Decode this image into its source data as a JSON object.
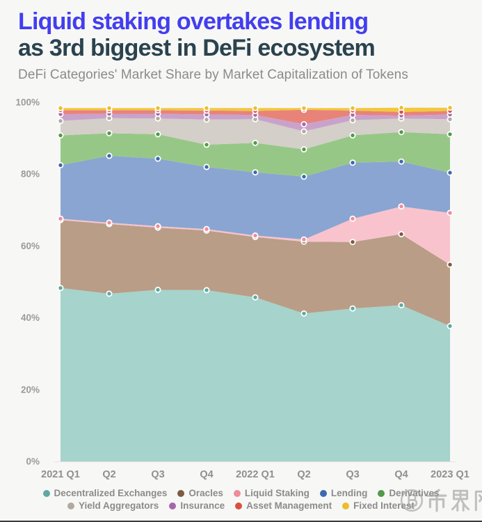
{
  "header": {
    "title_line1": "Liquid staking overtakes lending",
    "title_line2": "as 3rd biggest in DeFi ecosystem",
    "subtitle": "DeFi Categories' Market Share by Market Capitalization of Tokens"
  },
  "chart_data": {
    "type": "area",
    "stacked": true,
    "unit": "percent of DeFi market capitalization",
    "x_categories": [
      "2021 Q1",
      "Q2",
      "Q3",
      "Q4",
      "2022 Q1",
      "Q2",
      "Q3",
      "Q4",
      "2023 Q1"
    ],
    "y_ticks": [
      "0%",
      "20%",
      "40%",
      "60%",
      "80%",
      "100%"
    ],
    "ylim": [
      0,
      100
    ],
    "grid": false,
    "legend_position": "bottom",
    "series": [
      {
        "name": "Decentralized Exchanges",
        "color": "#a6d3cb",
        "marker_color": "#61a99f",
        "values": [
          48.3,
          46.7,
          47.8,
          47.7,
          45.7,
          41.2,
          42.6,
          43.5,
          37.7
        ]
      },
      {
        "name": "Oracles",
        "color": "#b99d87",
        "marker_color": "#7d5a43",
        "values": [
          18.9,
          19.4,
          17.3,
          16.6,
          16.8,
          20.0,
          18.5,
          19.8,
          17.1
        ]
      },
      {
        "name": "Liquid Staking",
        "color": "#f9c3cd",
        "marker_color": "#ee8c9b",
        "values": [
          0.4,
          0.4,
          0.4,
          0.4,
          0.4,
          0.6,
          6.5,
          7.7,
          14.4
        ]
      },
      {
        "name": "Lending",
        "color": "#8aa5d1",
        "marker_color": "#3e69ae",
        "values": [
          14.9,
          18.6,
          18.8,
          17.3,
          17.6,
          17.5,
          15.6,
          12.5,
          11.2
        ]
      },
      {
        "name": "Derivatives",
        "color": "#97c787",
        "marker_color": "#539a49",
        "values": [
          8.3,
          6.3,
          6.8,
          6.2,
          8.2,
          7.6,
          7.6,
          8.2,
          10.7
        ]
      },
      {
        "name": "Yield Aggregators",
        "color": "#d4cfc9",
        "marker_color": "#b2a9a1",
        "values": [
          4.0,
          4.2,
          4.4,
          7.0,
          6.6,
          5.0,
          4.2,
          3.8,
          4.2
        ]
      },
      {
        "name": "Insurance",
        "color": "#c9a2cb",
        "marker_color": "#a667ab",
        "values": [
          1.9,
          1.2,
          1.3,
          1.4,
          1.2,
          2.0,
          1.5,
          0.8,
          1.3
        ]
      },
      {
        "name": "Asset Management",
        "color": "#e8837a",
        "marker_color": "#d9503f",
        "values": [
          1.1,
          1.0,
          1.0,
          1.1,
          1.1,
          4.0,
          1.2,
          1.0,
          1.0
        ]
      },
      {
        "name": "Fixed Interest",
        "color": "#f2c83c",
        "marker_color": "#ecbe2c",
        "values": [
          0.6,
          0.6,
          0.6,
          0.7,
          0.8,
          0.5,
          0.7,
          1.2,
          0.9
        ]
      }
    ]
  },
  "watermark": {
    "icon": "bitcoin-circle",
    "text": "币界网"
  },
  "colors": {
    "title_accent": "#433eef",
    "title_dark": "#2a434e",
    "subtitle_gray": "#8b8b8b",
    "axis_label_gray": "#9b9b9b",
    "legend_label_gray": "#8b8b8b",
    "background": "#f7f7f6",
    "bottom_bar": "#3a3a3a"
  }
}
